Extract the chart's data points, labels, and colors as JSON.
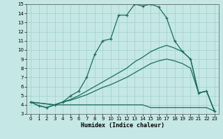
{
  "xlabel": "Humidex (Indice chaleur)",
  "xlim": [
    -0.5,
    23.5
  ],
  "ylim": [
    3,
    15
  ],
  "xticks": [
    0,
    1,
    2,
    3,
    4,
    5,
    6,
    7,
    8,
    9,
    10,
    11,
    12,
    13,
    14,
    15,
    16,
    17,
    18,
    19,
    20,
    21,
    22,
    23
  ],
  "yticks": [
    3,
    4,
    5,
    6,
    7,
    8,
    9,
    10,
    11,
    12,
    13,
    14,
    15
  ],
  "background_color": "#c5e8e6",
  "line_color": "#1c6b5c",
  "grid_color": "#9fcfca",
  "line1_x": [
    0,
    1,
    2,
    3,
    4,
    5,
    6,
    7,
    8,
    9,
    10,
    11,
    12,
    13,
    14,
    15,
    16,
    17,
    18,
    19,
    20,
    21,
    22,
    23
  ],
  "line1_y": [
    4.3,
    3.9,
    3.7,
    4.0,
    4.3,
    5.0,
    5.5,
    7.0,
    9.5,
    11.0,
    11.2,
    13.8,
    13.8,
    15.0,
    14.8,
    15.0,
    14.7,
    13.5,
    11.0,
    9.8,
    9.0,
    5.3,
    5.5,
    3.3
  ],
  "line2_x": [
    0,
    3,
    4,
    5,
    6,
    7,
    8,
    9,
    10,
    11,
    12,
    13,
    14,
    15,
    16,
    17,
    18,
    19,
    20,
    21,
    22,
    23
  ],
  "line2_y": [
    4.3,
    4.0,
    4.3,
    4.6,
    5.0,
    5.5,
    6.0,
    6.5,
    7.0,
    7.5,
    8.0,
    8.7,
    9.2,
    9.8,
    10.2,
    10.5,
    10.2,
    9.8,
    9.0,
    5.3,
    5.5,
    3.3
  ],
  "line3_x": [
    0,
    3,
    4,
    5,
    6,
    7,
    8,
    9,
    10,
    11,
    12,
    13,
    14,
    15,
    16,
    17,
    18,
    19,
    20,
    21,
    22,
    23
  ],
  "line3_y": [
    4.3,
    4.0,
    4.3,
    4.5,
    4.8,
    5.1,
    5.5,
    5.9,
    6.2,
    6.6,
    7.0,
    7.5,
    8.0,
    8.5,
    8.8,
    9.0,
    8.8,
    8.5,
    8.0,
    5.3,
    5.5,
    3.3
  ],
  "line4_x": [
    0,
    1,
    2,
    3,
    4,
    5,
    6,
    7,
    8,
    9,
    10,
    11,
    12,
    13,
    14,
    15,
    16,
    17,
    18,
    19,
    20,
    21,
    22,
    23
  ],
  "line4_y": [
    4.3,
    3.9,
    3.7,
    4.0,
    4.0,
    4.0,
    4.0,
    4.0,
    4.0,
    4.0,
    4.0,
    4.0,
    4.0,
    4.0,
    4.0,
    3.7,
    3.7,
    3.7,
    3.7,
    3.7,
    3.7,
    3.7,
    3.7,
    3.3
  ]
}
